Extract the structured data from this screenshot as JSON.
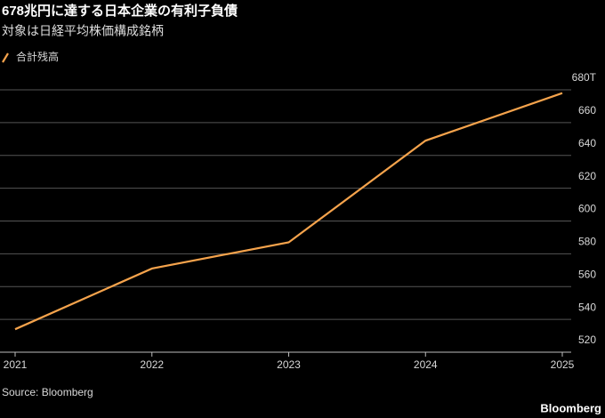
{
  "chart_data": {
    "type": "line",
    "title": "678兆円に達する日本企業の有利子負債",
    "subtitle": "対象は日経平均株価構成銘柄",
    "x": [
      2021,
      2022,
      2023,
      2024,
      2025
    ],
    "series": [
      {
        "name": "合計残高",
        "color": "#f5a34c",
        "values": [
          534,
          571,
          587,
          649,
          678
        ]
      }
    ],
    "xlim": [
      2021,
      2025
    ],
    "xticks": [
      2021,
      2022,
      2023,
      2024,
      2025
    ],
    "ylim": [
      520,
      680
    ],
    "yticks": [
      520,
      540,
      560,
      580,
      600,
      620,
      640,
      660,
      {
        "value": 680,
        "label": "680T"
      }
    ],
    "grid": true,
    "source": "Source: Bloomberg",
    "brand": "Bloomberg"
  }
}
